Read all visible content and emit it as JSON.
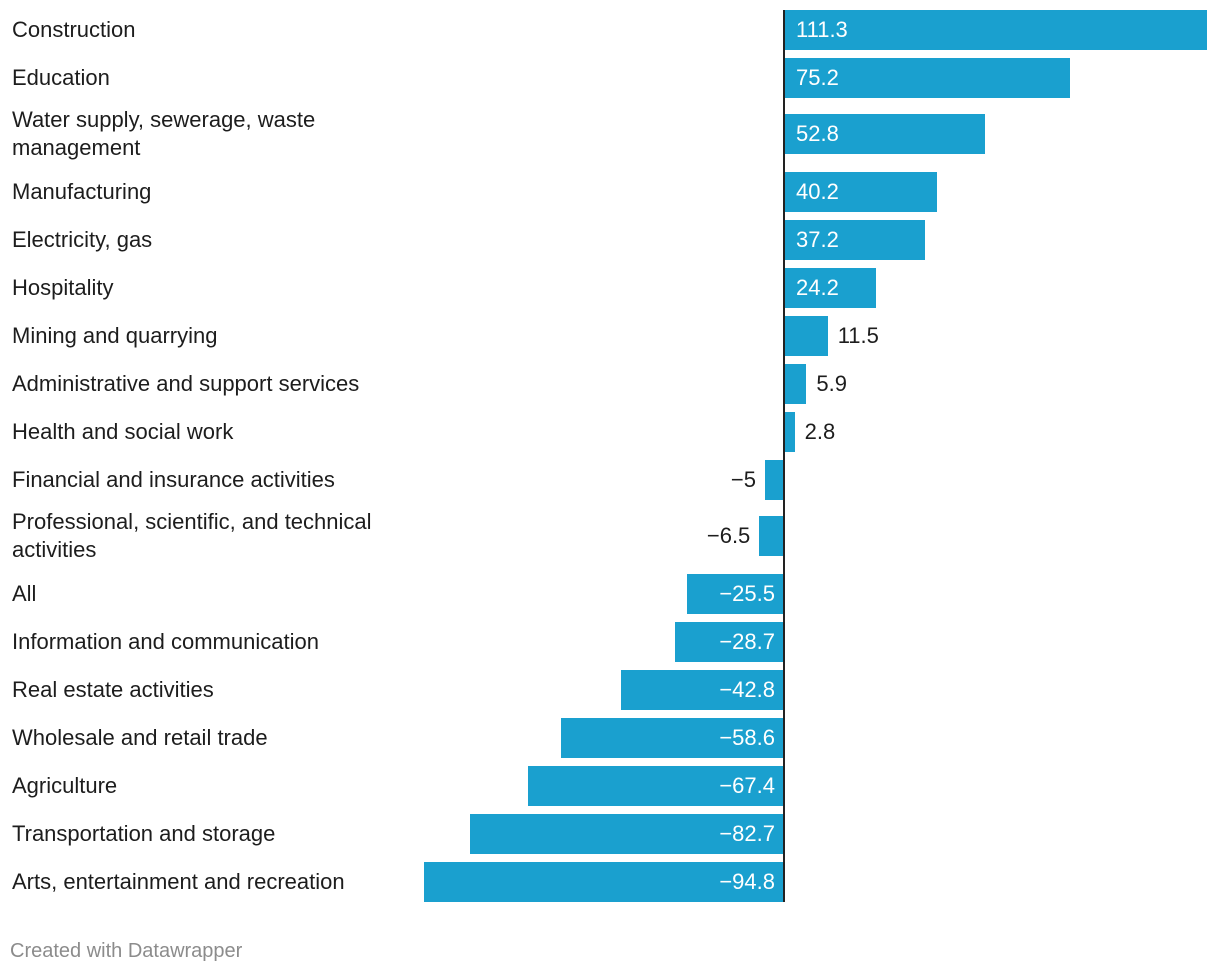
{
  "chart_data": {
    "type": "bar",
    "orientation": "horizontal",
    "categories": [
      "Construction",
      "Education",
      "Water supply, sewerage, waste management",
      "Manufacturing",
      "Electricity, gas",
      "Hospitality",
      "Mining and quarrying",
      "Administrative and support services",
      "Health and social work",
      "Financial and insurance activities",
      "Professional, scientific, and technical activities",
      "All",
      "Information and communication",
      "Real estate activities",
      "Wholesale and retail trade",
      "Agriculture",
      "Transportation and storage",
      "Arts, entertainment and recreation"
    ],
    "values": [
      111.3,
      75.2,
      52.8,
      40.2,
      37.2,
      24.2,
      11.5,
      5.9,
      2.8,
      -5,
      -6.5,
      -25.5,
      -28.7,
      -42.8,
      -58.6,
      -67.4,
      -82.7,
      -94.8
    ],
    "value_labels": [
      "111.3",
      "75.2",
      "52.8",
      "40.2",
      "37.2",
      "24.2",
      "11.5",
      "5.9",
      "2.8",
      "−5",
      "−6.5",
      "−25.5",
      "−28.7",
      "−42.8",
      "−58.6",
      "−67.4",
      "−82.7",
      "−94.8"
    ],
    "bar_color": "#1aa0cf",
    "title": "",
    "xlabel": "",
    "ylabel": ""
  },
  "footer": {
    "credit": "Created with Datawrapper"
  }
}
